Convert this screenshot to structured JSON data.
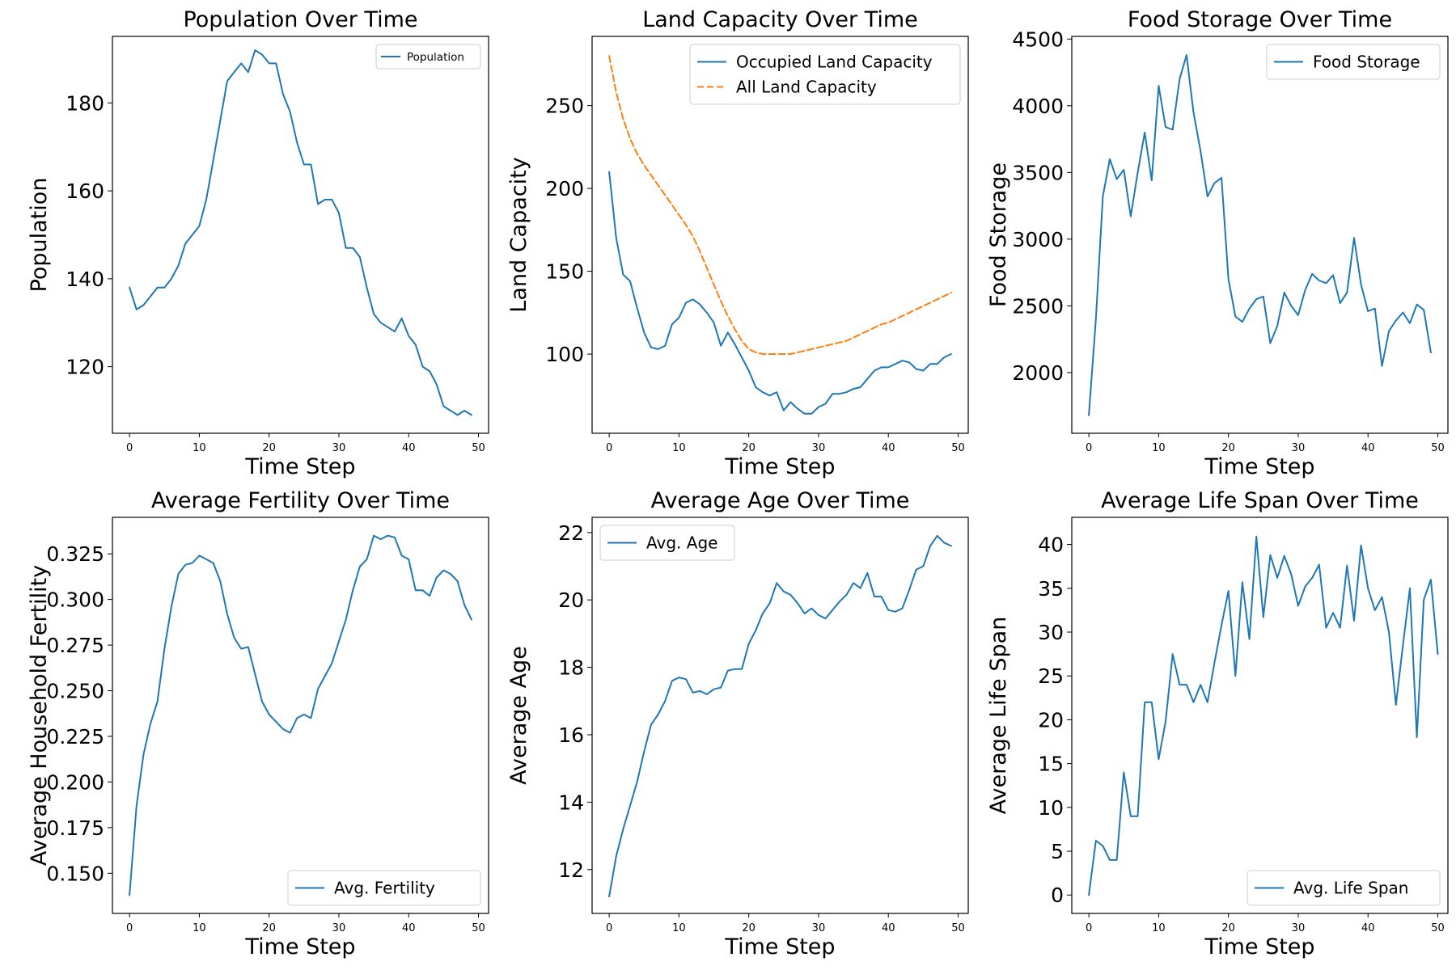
{
  "chart_data": [
    {
      "type": "line",
      "title": "Population Over Time",
      "xlabel": "Time Step",
      "ylabel": "Population",
      "xlim": [
        -2.45,
        51.45
      ],
      "ylim": [
        104.85,
        195.15
      ],
      "xticks": [
        0,
        10,
        20,
        30,
        40,
        50
      ],
      "xtick_labels": [
        "0",
        "10",
        "20",
        "30",
        "40",
        "50"
      ],
      "yticks": [
        120,
        140,
        160,
        180
      ],
      "ytick_labels": [
        "120",
        "140",
        "160",
        "180"
      ],
      "legend": "top-right",
      "legend_size": "small",
      "grid": false,
      "x": [
        0,
        1,
        2,
        3,
        4,
        5,
        6,
        7,
        8,
        9,
        10,
        11,
        12,
        13,
        14,
        15,
        16,
        17,
        18,
        19,
        20,
        21,
        22,
        23,
        24,
        25,
        26,
        27,
        28,
        29,
        30,
        31,
        32,
        33,
        34,
        35,
        36,
        37,
        38,
        39,
        40,
        41,
        42,
        43,
        44,
        45,
        46,
        47,
        48,
        49
      ],
      "series": [
        {
          "name": "Population",
          "color": "#1f77b4",
          "dash": "solid",
          "values": [
            138,
            133,
            134,
            136,
            138,
            138,
            140,
            143,
            148,
            150,
            152,
            158,
            167,
            176,
            185,
            187,
            189,
            187,
            192,
            191,
            189,
            189,
            182,
            178,
            171,
            166,
            166,
            157,
            158,
            158,
            155,
            147,
            147,
            145,
            138,
            132,
            130,
            129,
            128,
            131,
            127,
            125,
            120,
            119,
            116,
            111,
            110,
            109,
            110,
            109
          ]
        }
      ]
    },
    {
      "type": "line",
      "title": "Land Capacity Over Time",
      "xlabel": "Time Step",
      "ylabel": "Land Capacity",
      "xlim": [
        -2.45,
        51.45
      ],
      "ylim": [
        52.2,
        291.8
      ],
      "xticks": [
        0,
        10,
        20,
        30,
        40,
        50
      ],
      "xtick_labels": [
        "0",
        "10",
        "20",
        "30",
        "40",
        "50"
      ],
      "yticks": [
        100,
        150,
        200,
        250
      ],
      "ytick_labels": [
        "100",
        "150",
        "200",
        "250"
      ],
      "legend": "top-right",
      "legend_size": "large",
      "grid": false,
      "x": [
        0,
        1,
        2,
        3,
        4,
        5,
        6,
        7,
        8,
        9,
        10,
        11,
        12,
        13,
        14,
        15,
        16,
        17,
        18,
        19,
        20,
        21,
        22,
        23,
        24,
        25,
        26,
        27,
        28,
        29,
        30,
        31,
        32,
        33,
        34,
        35,
        36,
        37,
        38,
        39,
        40,
        41,
        42,
        43,
        44,
        45,
        46,
        47,
        48,
        49
      ],
      "series": [
        {
          "name": "Occupied Land Capacity",
          "color": "#1f77b4",
          "dash": "solid",
          "values": [
            210,
            170,
            148,
            144,
            128,
            113,
            104,
            103,
            105,
            118,
            122,
            131,
            133,
            130,
            125,
            119,
            105,
            113,
            106,
            98,
            90,
            80,
            77,
            75,
            77,
            66,
            71,
            67,
            64,
            64,
            68,
            70,
            76,
            76,
            77,
            79,
            80,
            85,
            90,
            92,
            92,
            94,
            96,
            95,
            91,
            90,
            94,
            94,
            98,
            100
          ]
        },
        {
          "name": "All Land Capacity",
          "color": "#ff7f0e",
          "dash": "dashed",
          "values": [
            280,
            258,
            242,
            230,
            221,
            214,
            208,
            202,
            196,
            190,
            184,
            178,
            171,
            162,
            152,
            142,
            132,
            123,
            115,
            108,
            103,
            101,
            100,
            100,
            100,
            100,
            100,
            101,
            102,
            103,
            104,
            105,
            106,
            107,
            108,
            110,
            112,
            114,
            116,
            118,
            119,
            121,
            123,
            125,
            127,
            129,
            131,
            133,
            135,
            137
          ]
        }
      ]
    },
    {
      "type": "line",
      "title": "Food Storage Over Time",
      "xlabel": "Time Step",
      "ylabel": "Food Storage",
      "xlim": [
        -2.45,
        51.45
      ],
      "ylim": [
        1545,
        4520
      ],
      "xticks": [
        0,
        10,
        20,
        30,
        40,
        50
      ],
      "xtick_labels": [
        "0",
        "10",
        "20",
        "30",
        "40",
        "50"
      ],
      "yticks": [
        2000,
        2500,
        3000,
        3500,
        4000,
        4500
      ],
      "ytick_labels": [
        "2000",
        "2500",
        "3000",
        "3500",
        "4000",
        "4500"
      ],
      "legend": "top-right",
      "legend_size": "large",
      "grid": false,
      "x": [
        0,
        1,
        2,
        3,
        4,
        5,
        6,
        7,
        8,
        9,
        10,
        11,
        12,
        13,
        14,
        15,
        16,
        17,
        18,
        19,
        20,
        21,
        22,
        23,
        24,
        25,
        26,
        27,
        28,
        29,
        30,
        31,
        32,
        33,
        34,
        35,
        36,
        37,
        38,
        39,
        40,
        41,
        42,
        43,
        44,
        45,
        46,
        47,
        48,
        49
      ],
      "series": [
        {
          "name": "Food Storage",
          "color": "#1f77b4",
          "dash": "solid",
          "values": [
            1680,
            2400,
            3320,
            3600,
            3450,
            3520,
            3170,
            3500,
            3800,
            3440,
            4150,
            3840,
            3820,
            4200,
            4380,
            3950,
            3660,
            3320,
            3420,
            3460,
            2700,
            2420,
            2380,
            2480,
            2550,
            2570,
            2220,
            2350,
            2600,
            2500,
            2430,
            2620,
            2740,
            2690,
            2670,
            2730,
            2520,
            2600,
            3010,
            2660,
            2460,
            2480,
            2050,
            2310,
            2390,
            2450,
            2370,
            2510,
            2470,
            2150
          ]
        }
      ]
    },
    {
      "type": "line",
      "title": "Average Fertility Over Time",
      "xlabel": "Time Step",
      "ylabel": "Average Household Fertility",
      "xlim": [
        -2.45,
        51.45
      ],
      "ylim": [
        0.128,
        0.345
      ],
      "xticks": [
        0,
        10,
        20,
        30,
        40,
        50
      ],
      "xtick_labels": [
        "0",
        "10",
        "20",
        "30",
        "40",
        "50"
      ],
      "yticks": [
        0.15,
        0.175,
        0.2,
        0.225,
        0.25,
        0.275,
        0.3,
        0.325
      ],
      "ytick_labels": [
        "0.150",
        "0.175",
        "0.200",
        "0.225",
        "0.250",
        "0.275",
        "0.300",
        "0.325"
      ],
      "legend": "bottom-right",
      "legend_size": "large",
      "grid": false,
      "x": [
        0,
        1,
        2,
        3,
        4,
        5,
        6,
        7,
        8,
        9,
        10,
        11,
        12,
        13,
        14,
        15,
        16,
        17,
        18,
        19,
        20,
        21,
        22,
        23,
        24,
        25,
        26,
        27,
        28,
        29,
        30,
        31,
        32,
        33,
        34,
        35,
        36,
        37,
        38,
        39,
        40,
        41,
        42,
        43,
        44,
        45,
        46,
        47,
        48,
        49
      ],
      "series": [
        {
          "name": "Avg. Fertility",
          "color": "#1f77b4",
          "dash": "solid",
          "values": [
            0.138,
            0.187,
            0.215,
            0.232,
            0.244,
            0.273,
            0.296,
            0.314,
            0.319,
            0.32,
            0.324,
            0.322,
            0.32,
            0.31,
            0.292,
            0.279,
            0.273,
            0.274,
            0.259,
            0.244,
            0.237,
            0.233,
            0.229,
            0.227,
            0.235,
            0.237,
            0.235,
            0.251,
            0.258,
            0.265,
            0.277,
            0.289,
            0.305,
            0.318,
            0.322,
            0.335,
            0.333,
            0.335,
            0.334,
            0.324,
            0.322,
            0.305,
            0.305,
            0.302,
            0.312,
            0.316,
            0.314,
            0.31,
            0.297,
            0.289
          ]
        }
      ]
    },
    {
      "type": "line",
      "title": "Average Age Over Time",
      "xlabel": "Time Step",
      "ylabel": "Average Age",
      "xlim": [
        -2.45,
        51.45
      ],
      "ylim": [
        10.7,
        22.45
      ],
      "xticks": [
        0,
        10,
        20,
        30,
        40,
        50
      ],
      "xtick_labels": [
        "0",
        "10",
        "20",
        "30",
        "40",
        "50"
      ],
      "yticks": [
        12,
        14,
        16,
        18,
        20,
        22
      ],
      "ytick_labels": [
        "12",
        "14",
        "16",
        "18",
        "20",
        "22"
      ],
      "legend": "top-left",
      "legend_size": "large",
      "grid": false,
      "x": [
        0,
        1,
        2,
        3,
        4,
        5,
        6,
        7,
        8,
        9,
        10,
        11,
        12,
        13,
        14,
        15,
        16,
        17,
        18,
        19,
        20,
        21,
        22,
        23,
        24,
        25,
        26,
        27,
        28,
        29,
        30,
        31,
        32,
        33,
        34,
        35,
        36,
        37,
        38,
        39,
        40,
        41,
        42,
        43,
        44,
        45,
        46,
        47,
        48,
        49
      ],
      "series": [
        {
          "name": "Avg. Age",
          "color": "#1f77b4",
          "dash": "solid",
          "values": [
            11.2,
            12.4,
            13.2,
            13.9,
            14.6,
            15.5,
            16.3,
            16.6,
            17.0,
            17.6,
            17.7,
            17.65,
            17.25,
            17.3,
            17.2,
            17.35,
            17.4,
            17.9,
            17.95,
            17.95,
            18.7,
            19.1,
            19.6,
            19.9,
            20.5,
            20.25,
            20.15,
            19.9,
            19.6,
            19.75,
            19.55,
            19.45,
            19.7,
            19.95,
            20.15,
            20.5,
            20.35,
            20.8,
            20.1,
            20.1,
            19.7,
            19.65,
            19.75,
            20.3,
            20.9,
            21.0,
            21.6,
            21.9,
            21.7,
            21.6
          ]
        }
      ]
    },
    {
      "type": "line",
      "title": "Average Life Span Over Time",
      "xlabel": "Time Step",
      "ylabel": "Average Life Span",
      "xlim": [
        -2.45,
        51.45
      ],
      "ylim": [
        -2.1,
        43.1
      ],
      "xticks": [
        0,
        10,
        20,
        30,
        40,
        50
      ],
      "xtick_labels": [
        "0",
        "10",
        "20",
        "30",
        "40",
        "50"
      ],
      "yticks": [
        0,
        5,
        10,
        15,
        20,
        25,
        30,
        35,
        40
      ],
      "ytick_labels": [
        "0",
        "5",
        "10",
        "15",
        "20",
        "25",
        "30",
        "35",
        "40"
      ],
      "legend": "bottom-right",
      "legend_size": "large",
      "grid": false,
      "x": [
        0,
        1,
        2,
        3,
        4,
        5,
        6,
        7,
        8,
        9,
        10,
        11,
        12,
        13,
        14,
        15,
        16,
        17,
        18,
        19,
        20,
        21,
        22,
        23,
        24,
        25,
        26,
        27,
        28,
        29,
        30,
        31,
        32,
        33,
        34,
        35,
        36,
        37,
        38,
        39,
        40,
        41,
        42,
        43,
        44,
        45,
        46,
        47,
        48,
        49,
        50
      ],
      "series": [
        {
          "name": "Avg. Life Span",
          "color": "#1f77b4",
          "dash": "solid",
          "values": [
            0,
            6.2,
            5.6,
            4,
            4,
            14,
            9,
            9,
            22,
            22,
            15.5,
            19.8,
            27.5,
            24,
            24,
            22,
            24,
            22,
            26.5,
            30.8,
            34.7,
            25,
            35.7,
            29.2,
            40.9,
            31.7,
            38.8,
            36.2,
            38.7,
            36.6,
            33,
            35.2,
            36.2,
            37.7,
            30.5,
            32.2,
            30.5,
            37.6,
            31.3,
            39.9,
            35,
            32.5,
            34,
            30,
            21.7,
            28.5,
            35,
            18,
            33.7,
            36,
            27.5
          ]
        }
      ]
    }
  ]
}
